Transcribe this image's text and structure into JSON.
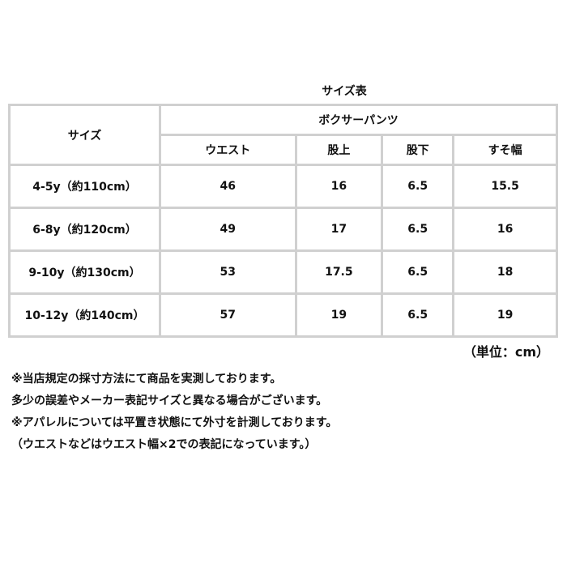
{
  "title": "サイズ表",
  "table": {
    "size_header": "サイズ",
    "group_header": "ボクサーパンツ",
    "columns": [
      "ウエスト",
      "股上",
      "股下",
      "すそ幅"
    ],
    "rows": [
      {
        "size": "4-5y（約110cm）",
        "values": [
          "46",
          "16",
          "6.5",
          "15.5"
        ]
      },
      {
        "size": "6-8y（約120cm）",
        "values": [
          "49",
          "17",
          "6.5",
          "16"
        ]
      },
      {
        "size": "9-10y（約130cm）",
        "values": [
          "53",
          "17.5",
          "6.5",
          "18"
        ]
      },
      {
        "size": "10-12y（約140cm）",
        "values": [
          "57",
          "19",
          "6.5",
          "19"
        ]
      }
    ]
  },
  "unit": "（単位：cm）",
  "notes": [
    "※当店規定の採寸方法にて商品を実測しております。",
    "多少の誤差やメーカー表記サイズと異なる場合がございます。",
    "※アパレルについては平置き状態にて外寸を計測しております。",
    "（ウエストなどはウエスト幅×2での表記になっています。）"
  ]
}
